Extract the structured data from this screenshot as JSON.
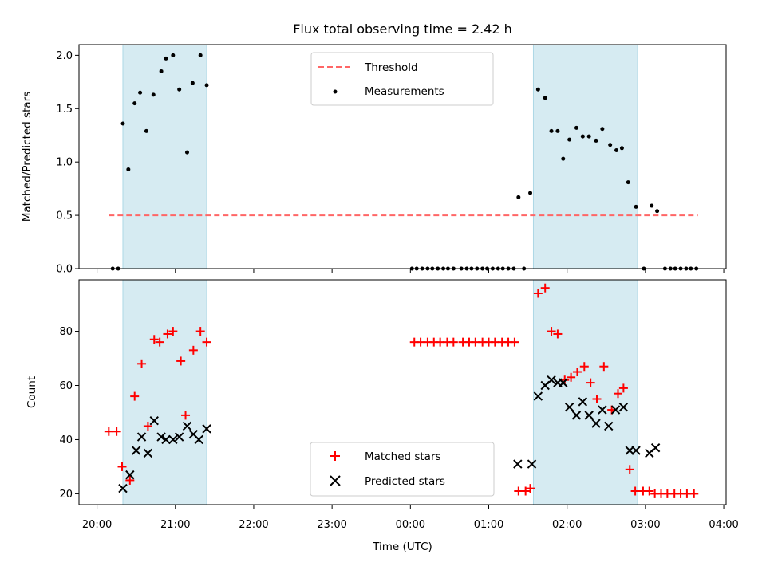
{
  "chart_data": [
    {
      "type": "scatter",
      "title": "Flux total observing time = 2.42 h",
      "xlabel": "",
      "ylabel": "Matched/Predicted stars",
      "ylim": [
        0,
        2.1
      ],
      "yticks": [
        "0.0",
        "0.5",
        "1.0",
        "1.5",
        "2.0"
      ],
      "shaded_intervals": [
        [
          20.33,
          21.4
        ],
        [
          25.57,
          26.9
        ]
      ],
      "threshold": {
        "name": "Threshold",
        "y": 0.5,
        "x_range": [
          20.15,
          27.67
        ],
        "color": "#ff6666"
      },
      "legend": {
        "placement": "upper center",
        "entries": [
          "Threshold",
          "Measurements"
        ]
      },
      "series": [
        {
          "name": "Measurements",
          "marker": "dot",
          "color": "#000000",
          "points": [
            [
              20.2,
              0.0
            ],
            [
              20.27,
              0.0
            ],
            [
              20.33,
              1.36
            ],
            [
              20.4,
              0.93
            ],
            [
              20.48,
              1.55
            ],
            [
              20.55,
              1.65
            ],
            [
              20.63,
              1.29
            ],
            [
              20.72,
              1.63
            ],
            [
              20.82,
              1.85
            ],
            [
              20.88,
              1.97
            ],
            [
              20.97,
              2.0
            ],
            [
              21.05,
              1.68
            ],
            [
              21.15,
              1.09
            ],
            [
              21.22,
              1.74
            ],
            [
              21.32,
              2.0
            ],
            [
              21.4,
              1.72
            ],
            [
              24.02,
              0.0
            ],
            [
              24.08,
              0.0
            ],
            [
              24.15,
              0.0
            ],
            [
              24.22,
              0.0
            ],
            [
              24.28,
              0.0
            ],
            [
              24.35,
              0.0
            ],
            [
              24.42,
              0.0
            ],
            [
              24.48,
              0.0
            ],
            [
              24.55,
              0.0
            ],
            [
              24.65,
              0.0
            ],
            [
              24.72,
              0.0
            ],
            [
              24.78,
              0.0
            ],
            [
              24.85,
              0.0
            ],
            [
              24.92,
              0.0
            ],
            [
              24.98,
              0.0
            ],
            [
              25.05,
              0.0
            ],
            [
              25.12,
              0.0
            ],
            [
              25.18,
              0.0
            ],
            [
              25.25,
              0.0
            ],
            [
              25.32,
              0.0
            ],
            [
              25.38,
              0.67
            ],
            [
              25.45,
              0.0
            ],
            [
              25.53,
              0.71
            ],
            [
              25.63,
              1.68
            ],
            [
              25.72,
              1.6
            ],
            [
              25.8,
              1.29
            ],
            [
              25.88,
              1.29
            ],
            [
              25.95,
              1.03
            ],
            [
              26.03,
              1.21
            ],
            [
              26.12,
              1.32
            ],
            [
              26.2,
              1.24
            ],
            [
              26.28,
              1.24
            ],
            [
              26.37,
              1.2
            ],
            [
              26.45,
              1.31
            ],
            [
              26.55,
              1.16
            ],
            [
              26.63,
              1.11
            ],
            [
              26.7,
              1.13
            ],
            [
              26.78,
              0.81
            ],
            [
              26.88,
              0.58
            ],
            [
              26.98,
              0.0
            ],
            [
              27.08,
              0.59
            ],
            [
              27.15,
              0.54
            ],
            [
              27.25,
              0.0
            ],
            [
              27.32,
              0.0
            ],
            [
              27.38,
              0.0
            ],
            [
              27.45,
              0.0
            ],
            [
              27.52,
              0.0
            ],
            [
              27.58,
              0.0
            ],
            [
              27.65,
              0.0
            ]
          ]
        }
      ]
    },
    {
      "type": "scatter",
      "title": "",
      "xlabel": "Time (UTC)",
      "ylabel": "Count",
      "ylim": [
        16,
        99
      ],
      "yticks": [
        "20",
        "40",
        "60",
        "80"
      ],
      "xlim": [
        19.77,
        28.03
      ],
      "xticks": [
        "20:00",
        "21:00",
        "22:00",
        "23:00",
        "00:00",
        "01:00",
        "02:00",
        "03:00",
        "04:00"
      ],
      "shaded_intervals": [
        [
          20.33,
          21.4
        ],
        [
          25.57,
          26.9
        ]
      ],
      "legend": {
        "placement": "lower center",
        "entries": [
          "Matched stars",
          "Predicted stars"
        ]
      },
      "series": [
        {
          "name": "Matched stars",
          "marker": "plus",
          "color": "#ff0000",
          "points": [
            [
              20.15,
              43
            ],
            [
              20.25,
              43
            ],
            [
              20.32,
              30
            ],
            [
              20.42,
              25
            ],
            [
              20.48,
              56
            ],
            [
              20.57,
              68
            ],
            [
              20.65,
              45
            ],
            [
              20.73,
              77
            ],
            [
              20.8,
              76
            ],
            [
              20.9,
              79
            ],
            [
              20.97,
              80
            ],
            [
              21.07,
              69
            ],
            [
              21.13,
              49
            ],
            [
              21.23,
              73
            ],
            [
              21.32,
              80
            ],
            [
              21.4,
              76
            ],
            [
              24.05,
              76
            ],
            [
              24.13,
              76
            ],
            [
              24.22,
              76
            ],
            [
              24.3,
              76
            ],
            [
              24.38,
              76
            ],
            [
              24.47,
              76
            ],
            [
              24.55,
              76
            ],
            [
              24.67,
              76
            ],
            [
              24.75,
              76
            ],
            [
              24.83,
              76
            ],
            [
              24.92,
              76
            ],
            [
              25.0,
              76
            ],
            [
              25.08,
              76
            ],
            [
              25.17,
              76
            ],
            [
              25.25,
              76
            ],
            [
              25.33,
              76
            ],
            [
              25.38,
              21
            ],
            [
              25.47,
              21
            ],
            [
              25.53,
              22
            ],
            [
              25.63,
              94
            ],
            [
              25.72,
              96
            ],
            [
              25.8,
              80
            ],
            [
              25.88,
              79
            ],
            [
              25.97,
              62
            ],
            [
              26.05,
              63
            ],
            [
              26.13,
              65
            ],
            [
              26.22,
              67
            ],
            [
              26.3,
              61
            ],
            [
              26.38,
              55
            ],
            [
              26.47,
              67
            ],
            [
              26.57,
              51
            ],
            [
              26.65,
              57
            ],
            [
              26.72,
              59
            ],
            [
              26.8,
              29
            ],
            [
              26.87,
              21
            ],
            [
              26.97,
              21
            ],
            [
              27.05,
              21
            ],
            [
              27.12,
              20
            ],
            [
              27.2,
              20
            ],
            [
              27.28,
              20
            ],
            [
              27.37,
              20
            ],
            [
              27.45,
              20
            ],
            [
              27.53,
              20
            ],
            [
              27.62,
              20
            ]
          ]
        },
        {
          "name": "Predicted stars",
          "marker": "x",
          "color": "#000000",
          "points": [
            [
              20.33,
              22
            ],
            [
              20.42,
              27
            ],
            [
              20.5,
              36
            ],
            [
              20.57,
              41
            ],
            [
              20.65,
              35
            ],
            [
              20.73,
              47
            ],
            [
              20.82,
              41
            ],
            [
              20.88,
              40
            ],
            [
              20.97,
              40
            ],
            [
              21.05,
              41
            ],
            [
              21.15,
              45
            ],
            [
              21.23,
              42
            ],
            [
              21.3,
              40
            ],
            [
              21.4,
              44
            ],
            [
              25.37,
              31
            ],
            [
              25.55,
              31
            ],
            [
              25.63,
              56
            ],
            [
              25.72,
              60
            ],
            [
              25.8,
              62
            ],
            [
              25.88,
              61
            ],
            [
              25.95,
              61
            ],
            [
              26.03,
              52
            ],
            [
              26.12,
              49
            ],
            [
              26.2,
              54
            ],
            [
              26.28,
              49
            ],
            [
              26.37,
              46
            ],
            [
              26.45,
              51
            ],
            [
              26.53,
              45
            ],
            [
              26.62,
              51
            ],
            [
              26.72,
              52
            ],
            [
              26.8,
              36
            ],
            [
              26.88,
              36
            ],
            [
              27.05,
              35
            ],
            [
              27.13,
              37
            ]
          ]
        }
      ]
    }
  ]
}
